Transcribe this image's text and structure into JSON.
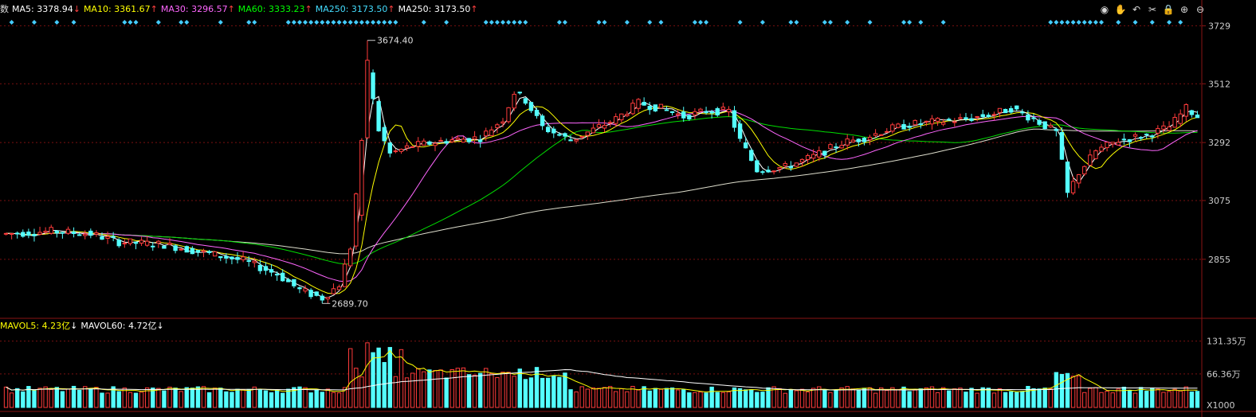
{
  "legend_main": [
    {
      "text": "MA5: 3378.94",
      "arrow": "↓",
      "color": "#ffffff",
      "arrow_color": "#ff4040"
    },
    {
      "text": "MA10: 3361.67",
      "arrow": "↑",
      "color": "#ffff00",
      "arrow_color": "#ff4040"
    },
    {
      "text": "MA30: 3296.57",
      "arrow": "↑",
      "color": "#ff66ff",
      "arrow_color": "#ff4040"
    },
    {
      "text": "MA60: 3333.23",
      "arrow": "↑",
      "color": "#00ff00",
      "arrow_color": "#ff4040"
    },
    {
      "text": "MA250: 3173.50",
      "arrow": "↑",
      "color": "#44ddff",
      "arrow_color": "#ff4040"
    },
    {
      "text": "MA250: 3173.50",
      "arrow": "↑",
      "color": "#ffffff",
      "arrow_color": "#ff4040"
    }
  ],
  "legend_prefix": "数",
  "legend_vol": [
    {
      "text": "MAVOL5: 4.23亿",
      "arrow": "↓",
      "color": "#ffff00",
      "arrow_color": "#ffffff"
    },
    {
      "text": "MAVOL60: 4.72亿",
      "arrow": "↓",
      "color": "#ffffff",
      "arrow_color": "#ffffff"
    }
  ],
  "toolbar_icons": [
    "eye-icon",
    "hand-icon",
    "undo-icon",
    "scissors-icon",
    "lock-icon",
    "zoom-in-icon",
    "zoom-out-icon"
  ],
  "toolbar_glyphs": [
    "◉",
    "✋",
    "↶",
    "✂",
    "🔒",
    "⊕",
    "⊖"
  ],
  "colors": {
    "up": "#ff3b3b",
    "down": "#54ffff",
    "grid": "#7a1010",
    "ma5": "#ffffff",
    "ma10": "#ffff00",
    "ma30": "#ff66ff",
    "ma60": "#00dd00",
    "ma250": "#ddddcc",
    "marker": "#44ccff"
  },
  "chart_data": {
    "type": "candlestick",
    "price_ticks": [
      "3729",
      "3512",
      "3292",
      "3075",
      "2855"
    ],
    "price_tick_values": [
      3729,
      3512,
      3292,
      3075,
      2855
    ],
    "ylim": [
      2640,
      3760
    ],
    "volume_ticks": [
      "131.35万",
      "66.36万"
    ],
    "volume_tick_values": [
      131.35,
      66.36
    ],
    "volume_ylim": [
      0,
      145
    ],
    "volume_unit_label": "X1000",
    "annotations": [
      {
        "text": "3674.40",
        "index": 64,
        "value": 3674.4,
        "kind": "high"
      },
      {
        "text": "2689.70",
        "index": 56,
        "value": 2689.7,
        "kind": "low"
      }
    ],
    "candles": [],
    "marker_indices": [
      1,
      5,
      9,
      12,
      21,
      22,
      23,
      27,
      31,
      32,
      38,
      43,
      44,
      50,
      51,
      52,
      53,
      54,
      55,
      56,
      57,
      58,
      59,
      60,
      61,
      62,
      63,
      64,
      65,
      66,
      67,
      68,
      69,
      74,
      78,
      85,
      86,
      87,
      88,
      89,
      90,
      91,
      92,
      98,
      99,
      105,
      106,
      110,
      114,
      116,
      122,
      123,
      124,
      130,
      134,
      139,
      140,
      145,
      146,
      149,
      153,
      159,
      160,
      162,
      166,
      185,
      186,
      187,
      188,
      189,
      190,
      191,
      192,
      193,
      194,
      197,
      200,
      203,
      206,
      208
    ]
  }
}
